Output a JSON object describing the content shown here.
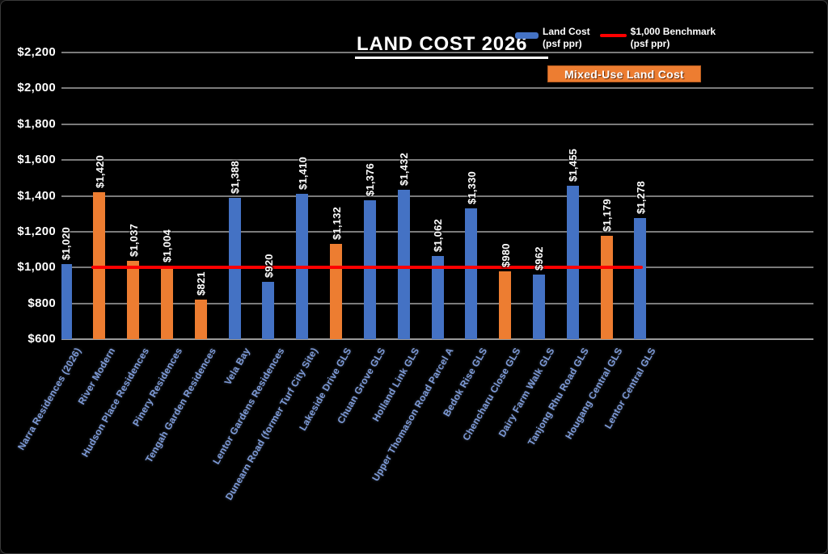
{
  "legend": {
    "land_cost": {
      "label": "Land Cost",
      "sublabel": "(psf ppr)"
    },
    "benchmark": {
      "label": "$1,000 Benchmark",
      "sublabel": "(psf ppr)"
    }
  },
  "banner": {
    "label": "Mixed-Use Land Cost"
  },
  "colors": {
    "land_cost_bar": "#4472C4",
    "mixed_use_bar": "#ED7D31",
    "benchmark_line": "#FE0000",
    "gridline": "#7B7B7B",
    "axis_line": "#9A9A9A",
    "category_label": "#7E9BD8",
    "banner_bg": "#ED7D31",
    "banner_border": "#B85C1E",
    "background": "#000000"
  },
  "chart_data": {
    "type": "bar",
    "title": "LAND COST 2026",
    "legend_position": "top-right",
    "grid": true,
    "y_axis": {
      "min": 600,
      "max": 2200,
      "step": 200,
      "tick_labels": [
        "$600",
        "$800",
        "$1,000",
        "$1,200",
        "$1,400",
        "$1,600",
        "$1,800",
        "$2,000",
        "$2,200"
      ]
    },
    "benchmark": {
      "label": "$1,000 Benchmark (psf ppr)",
      "value": 1000
    },
    "series_name": "Land Cost (psf ppr)",
    "mixed_use_series_name": "Mixed-Use Land Cost",
    "bars": [
      {
        "category": "Narra Residences (2026)",
        "value": 1020,
        "label": "$1,020",
        "type": "land"
      },
      {
        "category": "River Modern",
        "value": 1420,
        "label": "$1,420",
        "type": "mixed"
      },
      {
        "category": "Hudson Place Residences",
        "value": 1037,
        "label": "$1,037",
        "type": "mixed"
      },
      {
        "category": "Pinery Residences",
        "value": 1004,
        "label": "$1,004",
        "type": "mixed"
      },
      {
        "category": "Tengah Garden Residences",
        "value": 821,
        "label": "$821",
        "type": "mixed"
      },
      {
        "category": "Vela Bay",
        "value": 1388,
        "label": "$1,388",
        "type": "land"
      },
      {
        "category": "Lentor Gardens Residences",
        "value": 920,
        "label": "$920",
        "type": "land"
      },
      {
        "category": "Dunearn Road (former Turf City Site)",
        "value": 1410,
        "label": "$1,410",
        "type": "land"
      },
      {
        "category": "Lakeside Drive GLS",
        "value": 1132,
        "label": "$1,132",
        "type": "mixed"
      },
      {
        "category": "Chuan Grove GLS",
        "value": 1376,
        "label": "$1,376",
        "type": "land"
      },
      {
        "category": "Holland Link GLS",
        "value": 1432,
        "label": "$1,432",
        "type": "land"
      },
      {
        "category": "Upper Thomason Road Parcel A",
        "value": 1062,
        "label": "$1,062",
        "type": "land"
      },
      {
        "category": "Bedok Rise GLS",
        "value": 1330,
        "label": "$1,330",
        "type": "land"
      },
      {
        "category": "Chencharu Close GLS",
        "value": 980,
        "label": "$980",
        "type": "mixed"
      },
      {
        "category": "Dairy Farm Walk GLS",
        "value": 962,
        "label": "$962",
        "type": "land"
      },
      {
        "category": "Tanjong Rhu Road GLS",
        "value": 1455,
        "label": "$1,455",
        "type": "land"
      },
      {
        "category": "Hougang Central GLS",
        "value": 1179,
        "label": "$1,179",
        "type": "mixed"
      },
      {
        "category": "Lentor Central GLS",
        "value": 1278,
        "label": "$1,278",
        "type": "land"
      }
    ]
  }
}
